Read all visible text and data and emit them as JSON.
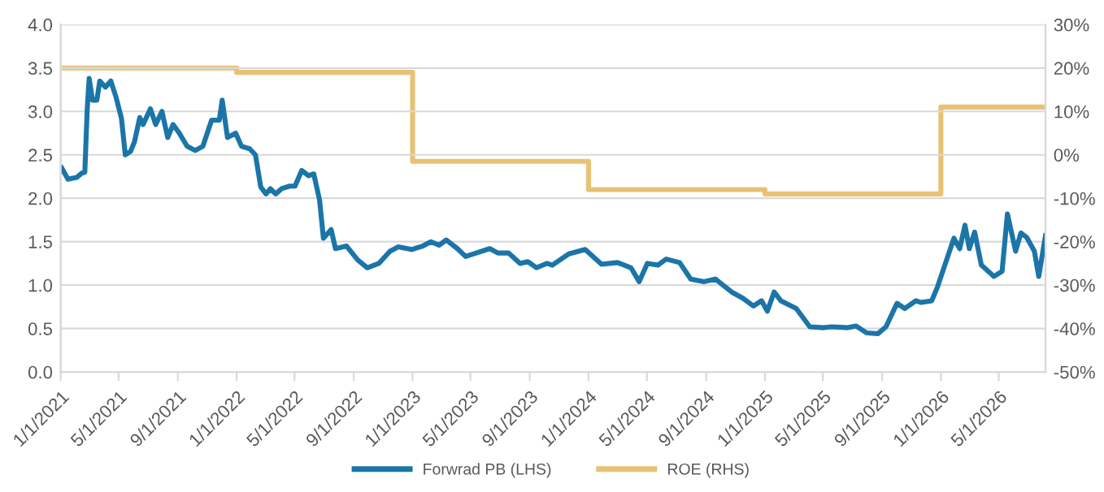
{
  "chart_data": {
    "type": "line",
    "x": [
      "2021-01-03",
      "2021-01-16",
      "2021-02-03",
      "2021-02-14",
      "2021-02-20",
      "2021-02-25",
      "2021-03-01",
      "2021-03-08",
      "2021-03-17",
      "2021-03-23",
      "2021-04-04",
      "2021-04-15",
      "2021-04-26",
      "2021-05-07",
      "2021-05-15",
      "2021-05-26",
      "2021-06-03",
      "2021-06-14",
      "2021-06-21",
      "2021-07-06",
      "2021-07-17",
      "2021-07-30",
      "2021-08-11",
      "2021-08-22",
      "2021-09-04",
      "2021-09-20",
      "2021-10-07",
      "2021-10-23",
      "2021-11-10",
      "2021-11-26",
      "2021-12-02",
      "2021-12-13",
      "2021-12-30",
      "2022-01-11",
      "2022-01-28",
      "2022-02-09",
      "2022-02-20",
      "2022-03-03",
      "2022-03-12",
      "2022-03-23",
      "2022-04-04",
      "2022-04-21",
      "2022-05-02",
      "2022-05-16",
      "2022-05-30",
      "2022-06-10",
      "2022-06-22",
      "2022-06-30",
      "2022-07-16",
      "2022-07-25",
      "2022-08-17",
      "2022-09-09",
      "2022-09-29",
      "2022-10-23",
      "2022-11-15",
      "2022-12-02",
      "2022-12-30",
      "2023-01-22",
      "2023-02-08",
      "2023-02-25",
      "2023-03-12",
      "2023-04-04",
      "2023-04-21",
      "2023-05-13",
      "2023-06-10",
      "2023-06-27",
      "2023-07-19",
      "2023-08-12",
      "2023-08-28",
      "2023-09-15",
      "2023-10-07",
      "2023-10-18",
      "2023-11-21",
      "2023-12-25",
      "2024-01-28",
      "2024-03-01",
      "2024-03-29",
      "2024-04-15",
      "2024-05-02",
      "2024-05-24",
      "2024-06-10",
      "2024-07-08",
      "2024-07-31",
      "2024-08-28",
      "2024-09-20",
      "2024-10-24",
      "2024-11-16",
      "2024-12-08",
      "2024-12-25",
      "2025-01-06",
      "2025-01-20",
      "2025-02-03",
      "2025-03-07",
      "2025-04-04",
      "2025-05-02",
      "2025-05-19",
      "2025-06-22",
      "2025-07-09",
      "2025-07-31",
      "2025-08-23",
      "2025-09-09",
      "2025-10-02",
      "2025-10-18",
      "2025-11-10",
      "2025-11-21",
      "2025-12-13",
      "2025-12-25",
      "2026-01-11",
      "2026-01-28",
      "2026-02-09",
      "2026-02-20",
      "2026-03-01",
      "2026-03-12",
      "2026-03-26",
      "2026-04-21",
      "2026-05-08",
      "2026-05-19",
      "2026-06-05",
      "2026-06-16",
      "2026-06-28",
      "2026-07-14",
      "2026-07-23",
      "2026-08-06"
    ],
    "series": [
      {
        "name": "Forwrad PB (LHS)",
        "color": "#1b75a8",
        "values": [
          2.35,
          2.22,
          2.24,
          2.29,
          2.3,
          3.03,
          3.38,
          3.13,
          3.13,
          3.35,
          3.28,
          3.35,
          3.16,
          2.92,
          2.5,
          2.54,
          2.65,
          2.93,
          2.85,
          3.03,
          2.85,
          3.0,
          2.7,
          2.85,
          2.75,
          2.6,
          2.55,
          2.6,
          2.9,
          2.9,
          3.13,
          2.7,
          2.75,
          2.6,
          2.57,
          2.5,
          2.13,
          2.05,
          2.11,
          2.05,
          2.11,
          2.14,
          2.14,
          2.32,
          2.26,
          2.28,
          1.98,
          1.54,
          1.64,
          1.42,
          1.45,
          1.29,
          1.2,
          1.25,
          1.39,
          1.44,
          1.41,
          1.45,
          1.5,
          1.46,
          1.52,
          1.42,
          1.33,
          1.37,
          1.42,
          1.37,
          1.37,
          1.25,
          1.27,
          1.2,
          1.25,
          1.23,
          1.36,
          1.41,
          1.24,
          1.26,
          1.2,
          1.04,
          1.25,
          1.23,
          1.3,
          1.26,
          1.07,
          1.04,
          1.07,
          0.92,
          0.85,
          0.76,
          0.82,
          0.7,
          0.92,
          0.82,
          0.73,
          0.52,
          0.51,
          0.52,
          0.51,
          0.53,
          0.45,
          0.44,
          0.52,
          0.79,
          0.73,
          0.82,
          0.8,
          0.82,
          0.98,
          1.26,
          1.54,
          1.42,
          1.69,
          1.42,
          1.61,
          1.23,
          1.1,
          1.16,
          1.82,
          1.39,
          1.6,
          1.55,
          1.39,
          1.1,
          1.57
        ]
      },
      {
        "name": "ROE (RHS)",
        "color": "#e8c274",
        "type": "step",
        "axis": "y2",
        "x": [
          "2021-01-01",
          "2022-01-01",
          "2023-01-01",
          "2024-01-01",
          "2025-01-01",
          "2026-01-01",
          "2026-08-06"
        ],
        "values": [
          20,
          19,
          -1.5,
          -8,
          -9,
          11,
          11
        ]
      }
    ],
    "xlim": [
      "2021-01-01",
      "2026-08-06"
    ],
    "xticks": [
      {
        "value": "2021-01-01",
        "label": "1/1/2021"
      },
      {
        "value": "2021-05-01",
        "label": "5/1/2021"
      },
      {
        "value": "2021-09-01",
        "label": "9/1/2021"
      },
      {
        "value": "2022-01-01",
        "label": "1/1/2022"
      },
      {
        "value": "2022-05-01",
        "label": "5/1/2022"
      },
      {
        "value": "2022-09-01",
        "label": "9/1/2022"
      },
      {
        "value": "2023-01-01",
        "label": "1/1/2023"
      },
      {
        "value": "2023-05-01",
        "label": "5/1/2023"
      },
      {
        "value": "2023-09-01",
        "label": "9/1/2023"
      },
      {
        "value": "2024-01-01",
        "label": "1/1/2024"
      },
      {
        "value": "2024-05-01",
        "label": "5/1/2024"
      },
      {
        "value": "2024-09-01",
        "label": "9/1/2024"
      },
      {
        "value": "2025-01-01",
        "label": "1/1/2025"
      },
      {
        "value": "2025-05-01",
        "label": "5/1/2025"
      },
      {
        "value": "2025-09-01",
        "label": "9/1/2025"
      },
      {
        "value": "2026-01-01",
        "label": "1/1/2026"
      },
      {
        "value": "2026-05-01",
        "label": "5/1/2026"
      }
    ],
    "ylim": [
      0,
      4
    ],
    "yticks": [
      {
        "value": 0,
        "label": "0.0"
      },
      {
        "value": 0.5,
        "label": "0.5"
      },
      {
        "value": 1,
        "label": "1.0"
      },
      {
        "value": 1.5,
        "label": "1.5"
      },
      {
        "value": 2,
        "label": "2.0"
      },
      {
        "value": 2.5,
        "label": "2.5"
      },
      {
        "value": 3,
        "label": "3.0"
      },
      {
        "value": 3.5,
        "label": "3.5"
      },
      {
        "value": 4,
        "label": "4.0"
      }
    ],
    "y2lim": [
      -50,
      30
    ],
    "y2ticks": [
      {
        "value": -50,
        "label": "-50%"
      },
      {
        "value": -40,
        "label": "-40%"
      },
      {
        "value": -30,
        "label": "-30%"
      },
      {
        "value": -20,
        "label": "-20%"
      },
      {
        "value": -10,
        "label": "-10%"
      },
      {
        "value": 0,
        "label": "0%"
      },
      {
        "value": 10,
        "label": "10%"
      },
      {
        "value": 20,
        "label": "20%"
      },
      {
        "value": 30,
        "label": "30%"
      }
    ],
    "grid": "y",
    "legend": "bottom"
  }
}
